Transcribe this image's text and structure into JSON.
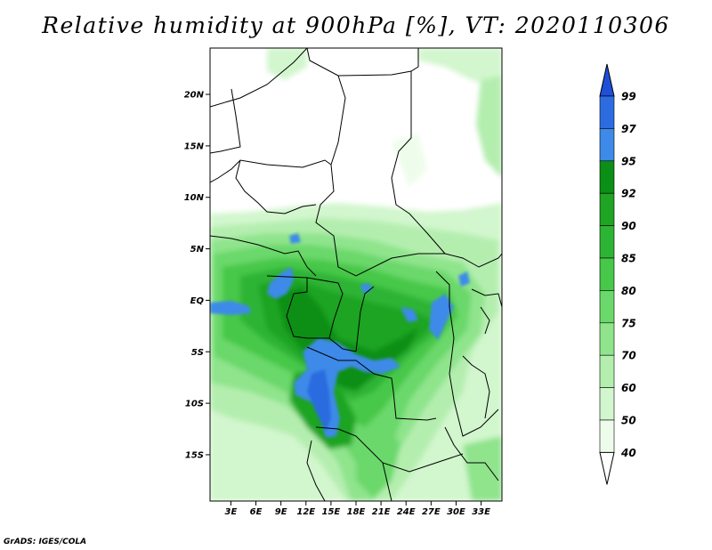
{
  "title": "Relative humidity at 900hPa [%], VT: 2020110306",
  "credit": "GrADS: IGES/COLA",
  "map": {
    "lat_ticks": [
      "20N",
      "15N",
      "10N",
      "5N",
      "EQ",
      "5S",
      "10S",
      "15S"
    ],
    "lon_ticks": [
      "3E",
      "6E",
      "9E",
      "12E",
      "15E",
      "18E",
      "21E",
      "24E",
      "27E",
      "30E",
      "33E"
    ],
    "lat_range": [
      -19.5,
      24.5
    ],
    "lon_range": [
      0.5,
      35.5
    ]
  },
  "colorbar": {
    "levels": [
      "99",
      "97",
      "95",
      "92",
      "90",
      "85",
      "80",
      "75",
      "70",
      "60",
      "50",
      "40"
    ],
    "colors": [
      "#1f4fd8",
      "#2c6ce0",
      "#3d8ae8",
      "#0c8f16",
      "#1fa424",
      "#2eb434",
      "#47c84a",
      "#6ad86a",
      "#8fe48c",
      "#b4eeaf",
      "#d2f6cd",
      "#eefdeb"
    ]
  }
}
